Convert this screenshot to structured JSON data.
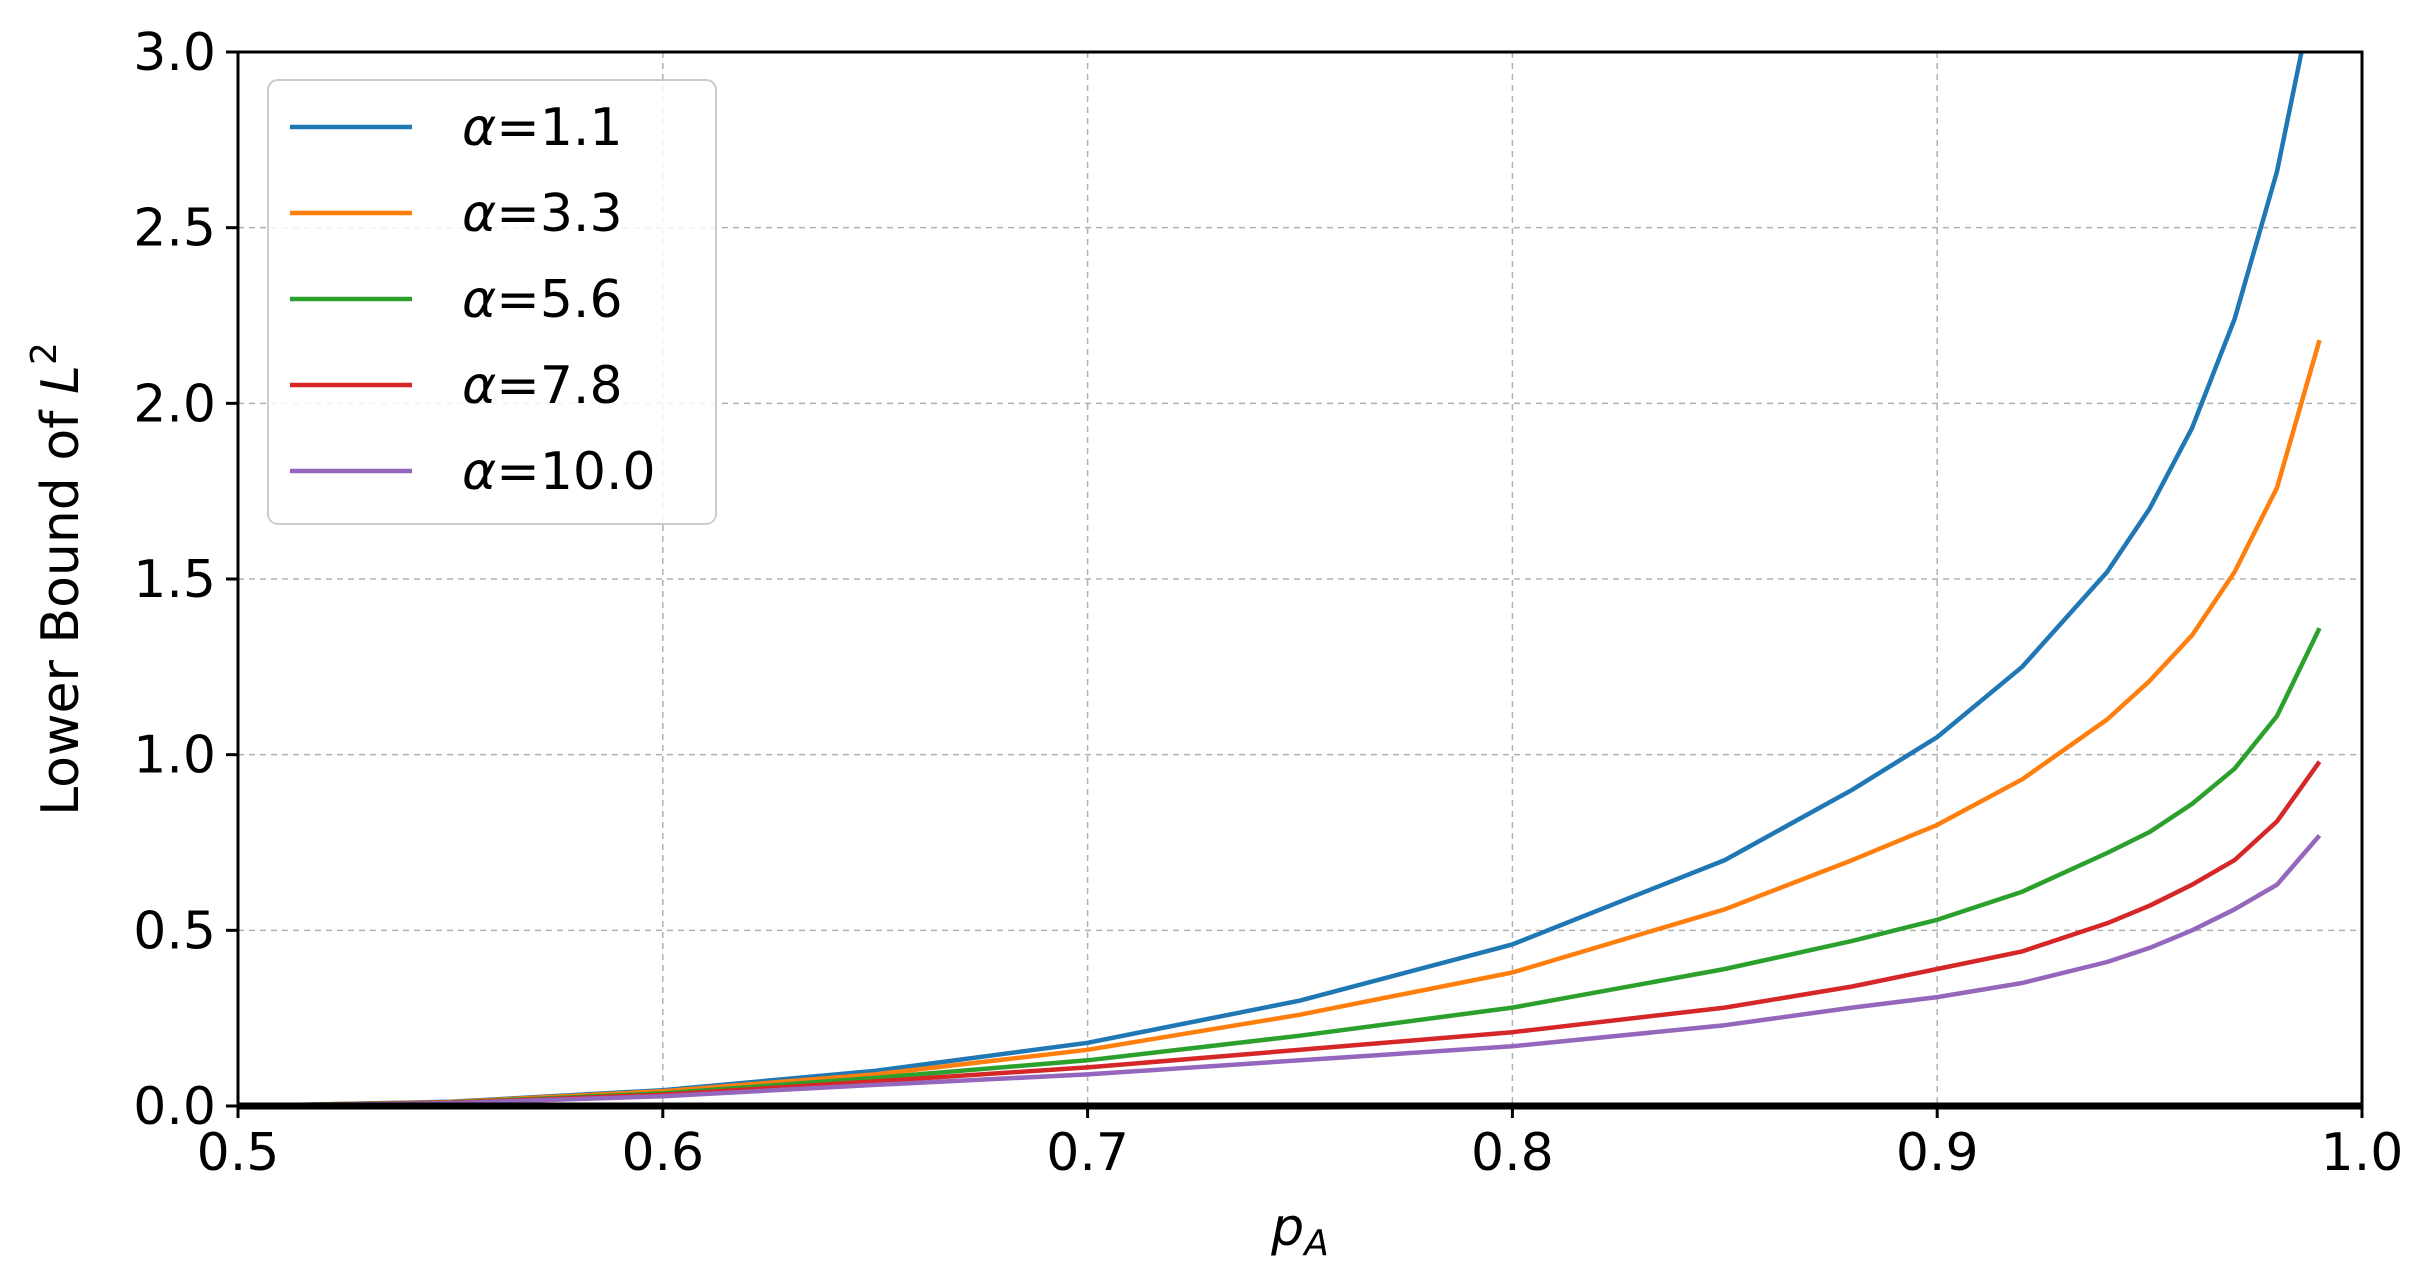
{
  "chart_data": {
    "type": "line",
    "xlabel_base": "p",
    "xlabel_sub": "A",
    "ylabel_text": "Lower Bound of ",
    "ylabel_var": "L",
    "ylabel_sup": "2",
    "xlim": [
      0.5,
      1.0
    ],
    "ylim": [
      0.0,
      3.0
    ],
    "xticks": [
      0.5,
      0.6,
      0.7,
      0.8,
      0.9,
      1.0
    ],
    "xtick_labels": [
      "0.5",
      "0.6",
      "0.7",
      "0.8",
      "0.9",
      "1.0"
    ],
    "yticks": [
      0.0,
      0.5,
      1.0,
      1.5,
      2.0,
      2.5,
      3.0
    ],
    "ytick_labels": [
      "0.0",
      "0.5",
      "1.0",
      "1.5",
      "2.0",
      "2.5",
      "3.0"
    ],
    "grid": true,
    "legend_position": "top-left",
    "x": [
      0.5,
      0.55,
      0.6,
      0.65,
      0.7,
      0.75,
      0.8,
      0.85,
      0.88,
      0.9,
      0.92,
      0.94,
      0.95,
      0.96,
      0.97,
      0.98,
      0.99
    ],
    "series": [
      {
        "name": "α=1.1",
        "legend_sym": "α",
        "legend_val": "=1.1",
        "color": "#1f77b4",
        "values": [
          0.0,
          0.012,
          0.045,
          0.1,
          0.18,
          0.3,
          0.46,
          0.7,
          0.9,
          1.05,
          1.25,
          1.52,
          1.7,
          1.93,
          2.24,
          2.66,
          3.25
        ]
      },
      {
        "name": "α=3.3",
        "legend_sym": "α",
        "legend_val": "=3.3",
        "color": "#ff7f0e",
        "values": [
          0.0,
          0.011,
          0.042,
          0.09,
          0.16,
          0.26,
          0.38,
          0.56,
          0.7,
          0.8,
          0.93,
          1.1,
          1.21,
          1.34,
          1.52,
          1.76,
          2.18
        ]
      },
      {
        "name": "α=5.6",
        "legend_sym": "α",
        "legend_val": "=5.6",
        "color": "#2ca02c",
        "values": [
          0.0,
          0.01,
          0.036,
          0.08,
          0.13,
          0.2,
          0.28,
          0.39,
          0.47,
          0.53,
          0.61,
          0.72,
          0.78,
          0.86,
          0.96,
          1.11,
          1.36
        ]
      },
      {
        "name": "α=7.8",
        "legend_sym": "α",
        "legend_val": "=7.8",
        "color": "#d62728",
        "values": [
          0.0,
          0.009,
          0.032,
          0.07,
          0.11,
          0.16,
          0.21,
          0.28,
          0.34,
          0.39,
          0.44,
          0.52,
          0.57,
          0.63,
          0.7,
          0.81,
          0.98
        ]
      },
      {
        "name": "α=10.0",
        "legend_sym": "α",
        "legend_val": "=10.0",
        "color": "#9467bd",
        "values": [
          0.0,
          0.008,
          0.028,
          0.06,
          0.09,
          0.13,
          0.17,
          0.23,
          0.28,
          0.31,
          0.35,
          0.41,
          0.45,
          0.5,
          0.56,
          0.63,
          0.77
        ]
      }
    ]
  }
}
